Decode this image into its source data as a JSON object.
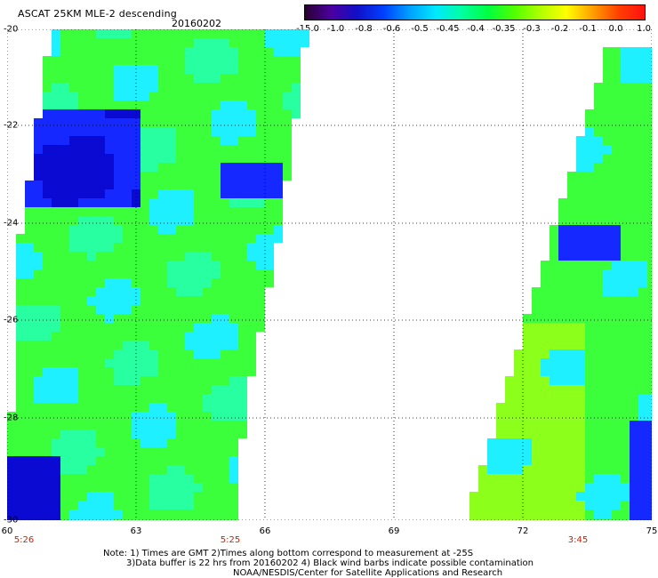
{
  "header": {
    "title": "ASCAT 25KM MLE-2 descending",
    "date": "20160202"
  },
  "colorbar": {
    "labels": [
      "-15.0",
      "-1.0",
      "-0.8",
      "-0.6",
      "-0.5",
      "-0.45",
      "-0.4",
      "-0.35",
      "-0.3",
      "-0.2",
      "-0.1",
      "0.0",
      "1.0"
    ],
    "colors": [
      "#2a0030",
      "#4b00a0",
      "#1010c8",
      "#0040ff",
      "#00a0ff",
      "#00e8ff",
      "#00ffa0",
      "#00ff40",
      "#50ff00",
      "#b0ff00",
      "#ffff00",
      "#ffa000",
      "#ff4000",
      "#ff1010"
    ]
  },
  "axes": {
    "lat_labels": [
      "-20",
      "-22",
      "-24",
      "-26",
      "-28",
      "-30"
    ],
    "lon_labels": [
      "60",
      "63",
      "66",
      "69",
      "72",
      "75"
    ],
    "time_labels": [
      "5:26",
      "5:25",
      "3:45"
    ]
  },
  "notes": {
    "line1": "Note: 1) Times are GMT 2)Times along bottom correspond to measurement at -25S",
    "line2": "3)Data buffer is 22 hrs from 20160202 4) Black wind barbs indicate possible contamination",
    "line3": "NOAA/NESDIS/Center for Satellite Applications and Research"
  },
  "map_colors": {
    "green": "#3cff3c",
    "lime": "#8cff1a",
    "cyan": "#1ef0ff",
    "blue": "#1428ff",
    "deep_blue": "#0a0ad2",
    "teal": "#28ffa0"
  }
}
